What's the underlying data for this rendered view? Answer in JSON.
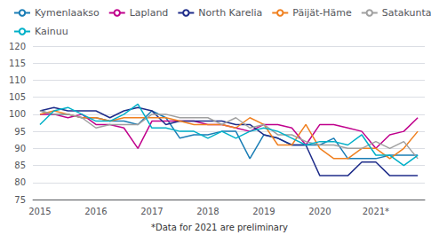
{
  "chart_data": {
    "type": "line",
    "categories": [
      "2015",
      null,
      null,
      null,
      "2016",
      null,
      null,
      null,
      "2017",
      null,
      null,
      null,
      "2018",
      null,
      null,
      null,
      "2019",
      null,
      null,
      null,
      "2020",
      null,
      null,
      null,
      "2021*",
      null,
      null,
      null
    ],
    "series": [
      {
        "name": "Kymenlaakso",
        "color": "#1a7db5",
        "values": [
          101,
          100,
          100,
          99,
          99,
          98,
          98,
          97,
          101,
          99,
          93,
          94,
          94,
          95,
          95,
          87,
          94,
          93,
          91,
          91,
          91,
          93,
          87,
          87,
          87,
          88,
          88,
          88
        ]
      },
      {
        "name": "Lapland",
        "color": "#c0008c",
        "values": [
          100,
          100,
          99,
          100,
          97,
          97,
          96,
          90,
          98,
          98,
          98,
          98,
          97,
          97,
          96,
          95,
          97,
          97,
          96,
          91,
          97,
          97,
          96,
          95,
          90,
          94,
          95,
          99
        ]
      },
      {
        "name": "North Karelia",
        "color": "#1f2d8a",
        "values": [
          101,
          102,
          101,
          101,
          101,
          99,
          101,
          102,
          101,
          97,
          98,
          98,
          98,
          98,
          97,
          97,
          94,
          93,
          91,
          91,
          82,
          82,
          82,
          86,
          86,
          82,
          82,
          82
        ]
      },
      {
        "name": "Päijät-Häme",
        "color": "#f08020",
        "values": [
          100,
          101,
          100,
          99,
          99,
          98,
          99,
          99,
          99,
          99,
          98,
          97,
          97,
          97,
          96,
          99,
          97,
          91,
          91,
          97,
          90,
          87,
          87,
          90,
          90,
          87,
          90,
          95
        ]
      },
      {
        "name": "Satakunta",
        "color": "#a0a0a0",
        "values": [
          101,
          100,
          100,
          99,
          96,
          97,
          97,
          97,
          100,
          100,
          99,
          99,
          99,
          97,
          99,
          96,
          97,
          94,
          94,
          92,
          91,
          91,
          90,
          90,
          92,
          90,
          92,
          87
        ]
      },
      {
        "name": "Kainuu",
        "color": "#00b0c8",
        "values": [
          97,
          101,
          102,
          100,
          98,
          98,
          100,
          103,
          96,
          96,
          95,
          95,
          93,
          95,
          93,
          95,
          96,
          95,
          93,
          91,
          92,
          92,
          91,
          94,
          88,
          88,
          85,
          88
        ]
      }
    ],
    "ylim": [
      75,
      120
    ],
    "yticks": [
      75,
      80,
      85,
      90,
      95,
      100,
      105,
      110,
      115,
      120
    ],
    "grid": true,
    "legend": "upper left",
    "annotations": [
      "*Data for 2021 are preliminary"
    ]
  }
}
